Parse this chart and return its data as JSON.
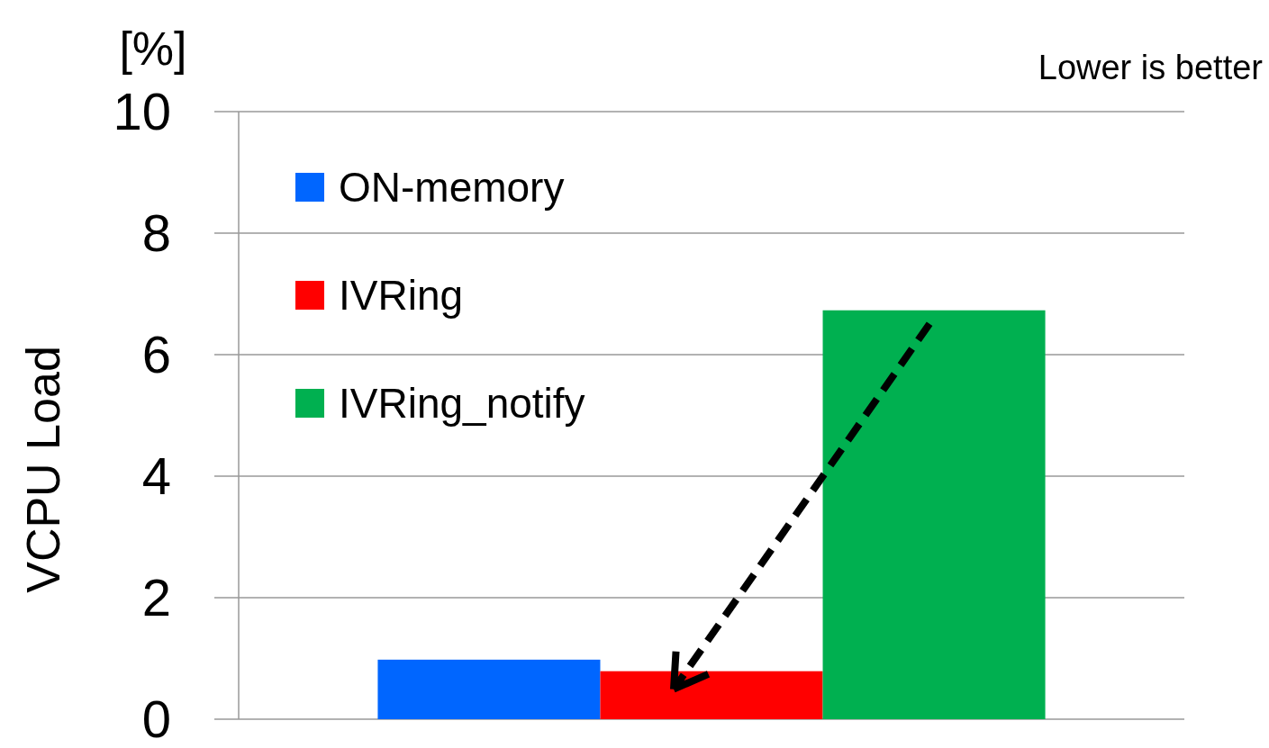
{
  "chart_data": {
    "type": "bar",
    "ylabel": "VCPU Load",
    "annotations": [
      "[%]",
      "Lower is better"
    ],
    "categories": [
      null
    ],
    "series": [
      {
        "name": "ON-memory",
        "color": "#0066ff",
        "values": [
          0.98
        ]
      },
      {
        "name": "IVRing",
        "color": "#ff0000",
        "values": [
          0.79
        ]
      },
      {
        "name": "IVRing_notify",
        "color": "#00b050",
        "values": [
          6.73
        ]
      }
    ],
    "ylim": [
      0,
      10
    ],
    "yticks": [
      0,
      2,
      4,
      6,
      8,
      10
    ],
    "grid": "y",
    "legend": "top left"
  }
}
